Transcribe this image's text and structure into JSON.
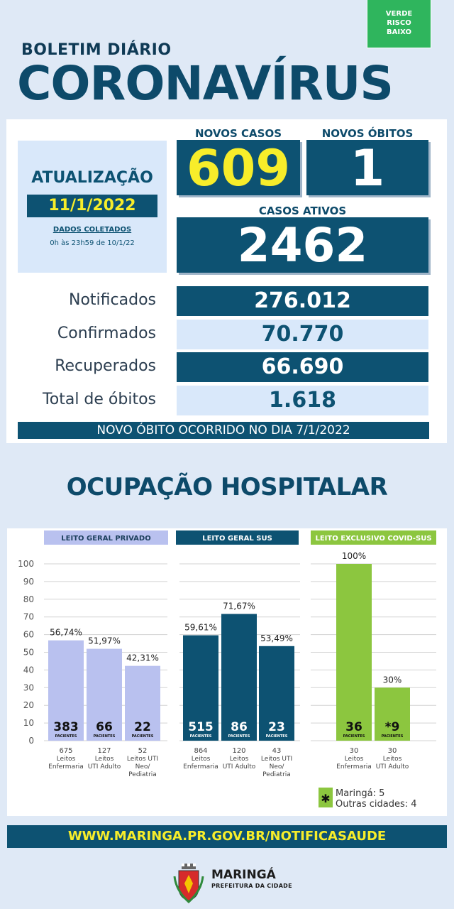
{
  "risk": {
    "line1": "VERDE",
    "line2": "RISCO",
    "line3": "BAIXO",
    "color": "#2fb55d"
  },
  "header": {
    "subtitle": "BOLETIM DIÁRIO",
    "title": "CORONAVÍRUS"
  },
  "update": {
    "title": "ATUALIZAÇÃO",
    "date": "11/1/2022",
    "dados": "DADOS COLETADOS",
    "period": "0h às 23h59 de 10/1/22"
  },
  "kpis": {
    "novos_casos_label": "NOVOS CASOS",
    "novos_casos": "609",
    "novos_obitos_label": "NOVOS ÓBITOS",
    "novos_obitos": "1",
    "casos_ativos_label": "CASOS ATIVOS",
    "casos_ativos": "2462"
  },
  "totals": [
    {
      "label": "Notificados",
      "value": "276.012"
    },
    {
      "label": "Confirmados",
      "value": "70.770"
    },
    {
      "label": "Recuperados",
      "value": "66.690"
    },
    {
      "label": "Total de óbitos",
      "value": "1.618"
    }
  ],
  "novo_obito_note": "NOVO ÓBITO OCORRIDO NO DIA 7/1/2022",
  "section_title": "OCUPAÇÃO HOSPITALAR",
  "chart_data": {
    "type": "bar",
    "ylim": [
      0,
      100
    ],
    "yticks": [
      0,
      10,
      20,
      30,
      40,
      50,
      60,
      70,
      80,
      90,
      100
    ],
    "grid": true,
    "groups": [
      {
        "name": "LEITO GERAL PRIVADO",
        "color": "#b9c1ef",
        "bars": [
          {
            "value": 56.74,
            "label": "56,74%",
            "patients": "383",
            "beds_num": "675",
            "beds_desc": [
              "Leitos",
              "Enfermaria"
            ]
          },
          {
            "value": 51.97,
            "label": "51,97%",
            "patients": "66",
            "beds_num": "127",
            "beds_desc": [
              "Leitos",
              "UTI Adulto"
            ]
          },
          {
            "value": 42.31,
            "label": "42,31%",
            "patients": "22",
            "beds_num": "52",
            "beds_desc": [
              "Leitos UTI",
              "Neo/",
              "Pediatria"
            ]
          }
        ]
      },
      {
        "name": "LEITO GERAL SUS",
        "color": "#0d5272",
        "bars": [
          {
            "value": 59.61,
            "label": "59,61%",
            "patients": "515",
            "beds_num": "864",
            "beds_desc": [
              "Leitos",
              "Enfermaria"
            ]
          },
          {
            "value": 71.67,
            "label": "71,67%",
            "patients": "86",
            "beds_num": "120",
            "beds_desc": [
              "Leitos",
              "UTI Adulto"
            ]
          },
          {
            "value": 53.49,
            "label": "53,49%",
            "patients": "23",
            "beds_num": "43",
            "beds_desc": [
              "Leitos UTI",
              "Neo/",
              "Pediatria"
            ]
          }
        ]
      },
      {
        "name": "LEITO EXCLUSIVO COVID-SUS",
        "color": "#8cc63f",
        "bars": [
          {
            "value": 100,
            "label": "100%",
            "patients": "36",
            "beds_num": "30",
            "beds_desc": [
              "Leitos",
              "Enfermaria"
            ]
          },
          {
            "value": 30,
            "label": "30%",
            "patients": "*9",
            "beds_num": "30",
            "beds_desc": [
              "Leitos",
              "UTI Adulto"
            ]
          }
        ]
      }
    ],
    "patients_word": "PACIENTES"
  },
  "legend": {
    "line1": "Maringá: 5",
    "line2": "Outras cidades: 4",
    "marker": "✱"
  },
  "footer": {
    "url": "WWW.MARINGA.PR.GOV.BR/NOTIFICASAUDE",
    "brand": "MARINGÁ",
    "brand_sub": "PREFEITURA DA CIDADE"
  }
}
